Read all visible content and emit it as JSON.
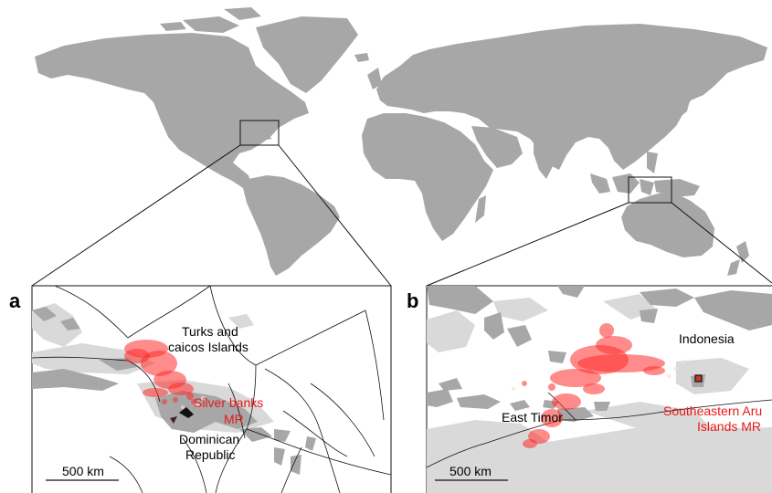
{
  "colors": {
    "land": "#a7a7a7",
    "shelf": "#d9d9d9",
    "ocean": "#ffffff",
    "track": "#ff2b2b",
    "reserve_label": "#e8191a",
    "border": "#111111"
  },
  "panels": {
    "a": {
      "letter": "a",
      "country_labels": [
        "Turks and",
        "caicos Islands",
        "Dominican",
        "Republic"
      ],
      "reserve_label": [
        "Silver banks",
        "MR"
      ],
      "scale_label": "500 km"
    },
    "b": {
      "letter": "b",
      "country_labels": [
        "Indonesia",
        "East Timor"
      ],
      "reserve_label": [
        "Southeastern Aru",
        "Islands MR"
      ],
      "scale_label": "500 km"
    }
  }
}
